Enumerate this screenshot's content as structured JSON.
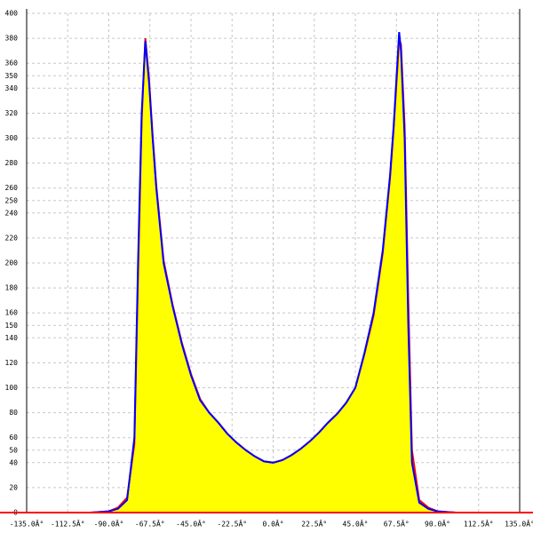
{
  "chart_data": {
    "type": "area",
    "x": [
      -135,
      -100,
      -90,
      -85,
      -80,
      -76,
      -74,
      -72,
      -70,
      -68,
      -66,
      -64,
      -60,
      -55,
      -50,
      -45,
      -40,
      -35,
      -30,
      -25,
      -20,
      -15,
      -10,
      -5,
      0,
      5,
      10,
      15,
      20,
      25,
      30,
      35,
      40,
      45,
      50,
      55,
      60,
      64,
      66,
      68,
      69,
      70,
      72,
      74,
      76,
      80,
      85,
      90,
      100,
      135
    ],
    "series": [
      {
        "color": "#ff0000",
        "fill": "#ffff00",
        "values": [
          0,
          0,
          1,
          4,
          12,
          55,
          190,
          315,
          380,
          348,
          302,
          262,
          202,
          166,
          136,
          111,
          91,
          80,
          72,
          63,
          56,
          50,
          45,
          41,
          40,
          42,
          46,
          51,
          57,
          64,
          72,
          79,
          88,
          100,
          127,
          158,
          208,
          268,
          308,
          355,
          380,
          375,
          310,
          170,
          50,
          10,
          4,
          1,
          0,
          0
        ]
      },
      {
        "color": "#0000ff",
        "values": [
          0,
          0,
          1,
          3,
          10,
          60,
          200,
          320,
          378,
          345,
          300,
          260,
          200,
          165,
          135,
          110,
          90,
          80,
          72,
          63,
          56,
          50,
          45,
          41,
          40,
          42,
          46,
          51,
          57,
          64,
          72,
          79,
          88,
          100,
          128,
          160,
          210,
          270,
          310,
          360,
          385,
          370,
          300,
          150,
          40,
          8,
          3,
          1,
          0,
          0
        ]
      }
    ],
    "xlim": [
      -135,
      135
    ],
    "xticks": [
      {
        "value": -135,
        "label": "-135.0Â°"
      },
      {
        "value": -112.5,
        "label": "-112.5Â°"
      },
      {
        "value": -90,
        "label": "-90.0Â°"
      },
      {
        "value": -67.5,
        "label": "-67.5Â°"
      },
      {
        "value": -45,
        "label": "-45.0Â°"
      },
      {
        "value": -22.5,
        "label": "-22.5Â°"
      },
      {
        "value": 0,
        "label": "0.0Â°"
      },
      {
        "value": 22.5,
        "label": "22.5Â°"
      },
      {
        "value": 45,
        "label": "45.0Â°"
      },
      {
        "value": 67.5,
        "label": "67.5Â°"
      },
      {
        "value": 90,
        "label": "90.0Â°"
      },
      {
        "value": 112.5,
        "label": "112.5Â°"
      },
      {
        "value": 135,
        "label": "135.0Â°"
      }
    ],
    "ylim": [
      0,
      400
    ],
    "yticks": [
      0,
      20,
      40,
      50,
      60,
      80,
      100,
      120,
      140,
      150,
      160,
      180,
      200,
      220,
      240,
      250,
      260,
      280,
      300,
      320,
      340,
      350,
      360,
      380,
      400
    ],
    "grid": true
  }
}
